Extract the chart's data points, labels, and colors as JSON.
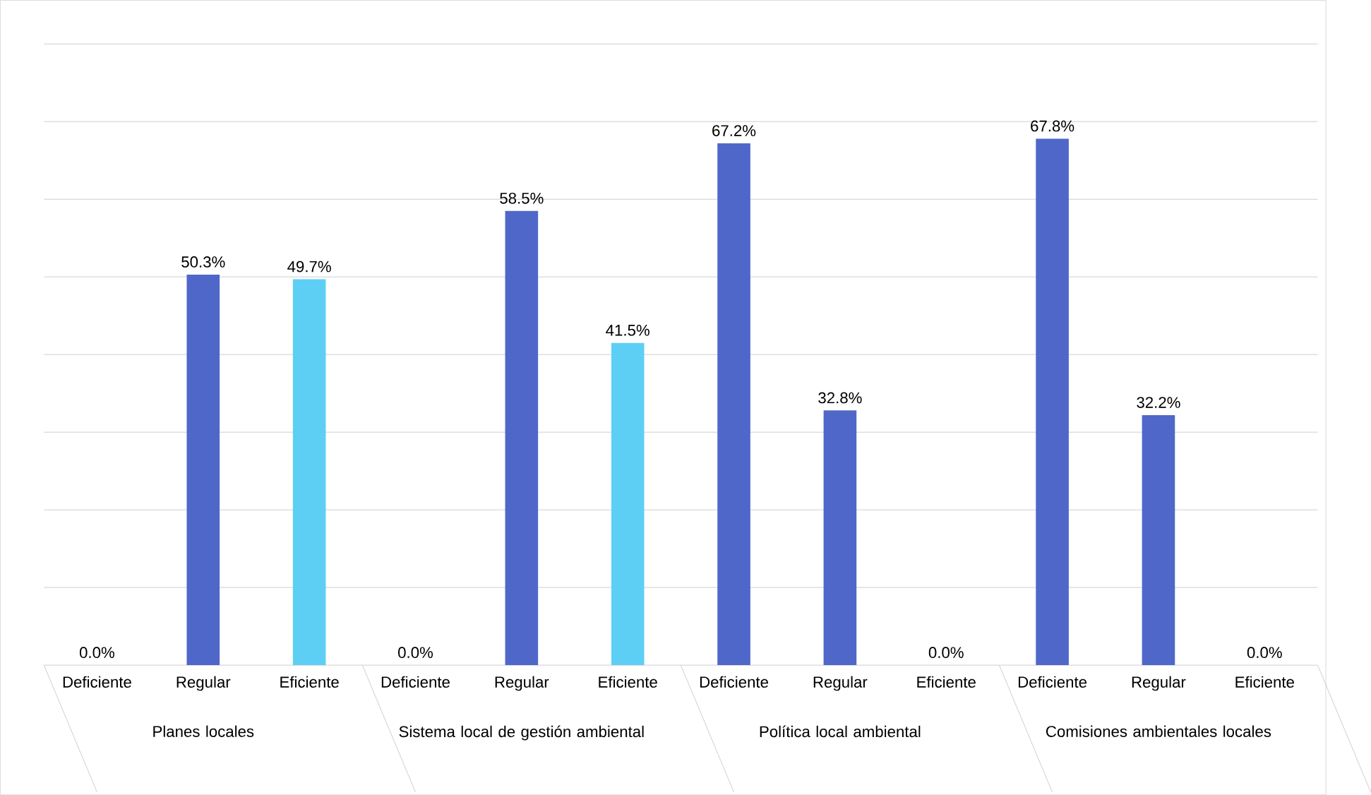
{
  "chart_data": {
    "type": "bar",
    "categories": [
      "Deficiente",
      "Regular",
      "Eficiente",
      "Deficiente",
      "Regular",
      "Eficiente",
      "Deficiente",
      "Regular",
      "Eficiente",
      "Deficiente",
      "Regular",
      "Eficiente"
    ],
    "values": [
      0.0,
      50.3,
      49.7,
      0.0,
      58.5,
      41.5,
      67.2,
      32.8,
      0.0,
      67.8,
      32.2,
      0.0
    ],
    "value_labels": [
      "0.0%",
      "50.3%",
      "49.7%",
      "0.0%",
      "58.5%",
      "41.5%",
      "67.2%",
      "32.8%",
      "0.0%",
      "67.8%",
      "32.2%",
      "0.0%"
    ],
    "colors": [
      "#4f67c9",
      "#4f67c9",
      "#5dcff4",
      "#4f67c9",
      "#4f67c9",
      "#5dcff4",
      "#4f67c9",
      "#4f67c9",
      "#4f67c9",
      "#4f67c9",
      "#4f67c9",
      "#4f67c9"
    ],
    "ylim": [
      0,
      80
    ],
    "yticks": [
      {
        "value": 0,
        "label": null
      },
      {
        "value": 10,
        "label": null
      },
      {
        "value": 20,
        "label": null
      },
      {
        "value": 30,
        "label": null
      },
      {
        "value": 40,
        "label": null
      },
      {
        "value": 50,
        "label": null
      },
      {
        "value": 60,
        "label": null
      },
      {
        "value": 70,
        "label": null
      },
      {
        "value": 80,
        "label": null
      }
    ],
    "grid": "y",
    "tick_labels": "x",
    "annotations": [
      "Planes locales",
      "Sistema local de gestión ambiental",
      "Política local ambiental",
      "Comisiones ambientales locales"
    ]
  }
}
